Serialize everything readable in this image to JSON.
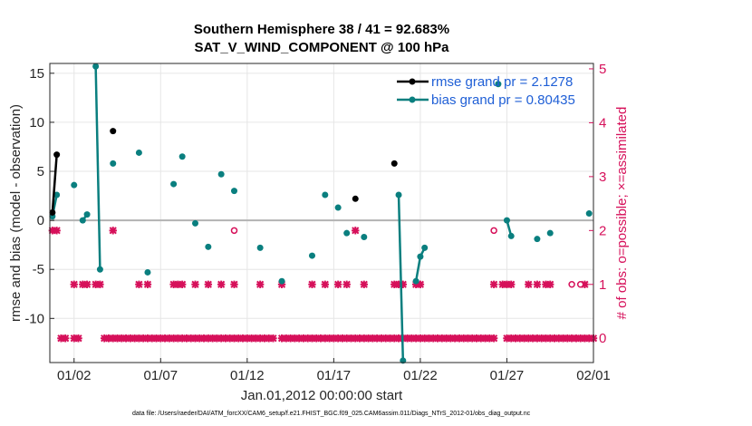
{
  "chart_data": {
    "type": "line",
    "title": "Southern Hemisphere 38 / 41 = 92.683%",
    "subtitle": "SAT_V_WIND_COMPONENT @ 100 hPa",
    "xlabel": "Jan.01,2012 00:00:00 start",
    "ylabel": "rmse and bias (model - observation)",
    "y2label": "# of obs: o=possible; ×=assimilated",
    "footnote": "data file: /Users/raeder/DAI/ATM_forcXX/CAM6_setup/f.e21.FHIST_BGC.f09_025.CAM6assim.011/Diags_NTrS_2012-01/obs_diag_output.nc",
    "xlim": [
      0.6,
      32.0
    ],
    "ylim": [
      -14.5,
      16.0
    ],
    "y2lim": [
      -0.45,
      5.1
    ],
    "xticks": [
      {
        "v": 2,
        "label": "01/02"
      },
      {
        "v": 7,
        "label": "01/07"
      },
      {
        "v": 12,
        "label": "01/12"
      },
      {
        "v": 17,
        "label": "01/17"
      },
      {
        "v": 22,
        "label": "01/22"
      },
      {
        "v": 27,
        "label": "01/27"
      },
      {
        "v": 32,
        "label": "02/01"
      }
    ],
    "yticks": [
      {
        "v": 15,
        "label": "15"
      },
      {
        "v": 10,
        "label": "10"
      },
      {
        "v": 5,
        "label": "5"
      },
      {
        "v": 0,
        "label": "0"
      },
      {
        "v": -5,
        "label": "-5"
      },
      {
        "v": -10,
        "label": "-10"
      }
    ],
    "y2ticks": [
      {
        "v": 5,
        "label": "5"
      },
      {
        "v": 4,
        "label": "4"
      },
      {
        "v": 3,
        "label": "3"
      },
      {
        "v": 2,
        "label": "2"
      },
      {
        "v": 1,
        "label": "1"
      },
      {
        "v": 0,
        "label": "0"
      }
    ],
    "colors": {
      "rmse": "#000000",
      "bias": "#0a7f7f",
      "obs": "#d6105a",
      "legend_text": "#1f5fd6",
      "zero_line": "#b3b3b3"
    },
    "legend": [
      {
        "name": "rmse",
        "label": "rmse grand pr = 2.1278"
      },
      {
        "name": "bias",
        "label": "bias grand pr = 0.80435"
      }
    ],
    "series": [
      {
        "name": "rmse",
        "values": [
          [
            0.75,
            0.8
          ],
          [
            1.0,
            6.7
          ],
          null,
          [
            4.25,
            9.1
          ],
          null,
          [
            18.25,
            2.2
          ],
          null,
          [
            20.5,
            5.8
          ]
        ]
      },
      {
        "name": "bias",
        "values": [
          [
            0.75,
            0.4
          ],
          [
            1.0,
            2.6
          ],
          null,
          [
            2.0,
            3.6
          ],
          null,
          [
            2.5,
            0.0
          ],
          [
            2.75,
            0.6
          ],
          null,
          [
            3.25,
            15.7
          ],
          [
            3.5,
            -5.0
          ],
          null,
          [
            4.25,
            5.8
          ],
          null,
          [
            5.75,
            6.9
          ],
          null,
          [
            6.25,
            -5.3
          ],
          null,
          [
            7.75,
            3.7
          ],
          null,
          [
            8.25,
            6.5
          ],
          null,
          [
            9.0,
            -0.3
          ],
          null,
          [
            9.75,
            -2.7
          ],
          null,
          [
            10.5,
            4.7
          ],
          null,
          [
            11.25,
            3.0
          ],
          null,
          [
            12.75,
            -2.8
          ],
          null,
          [
            14.0,
            -6.2
          ],
          null,
          [
            15.75,
            -3.6
          ],
          null,
          [
            16.5,
            2.6
          ],
          null,
          [
            17.25,
            1.3
          ],
          null,
          [
            17.75,
            -1.3
          ],
          null,
          [
            18.75,
            -1.7
          ],
          null,
          [
            20.75,
            2.6
          ],
          [
            21.0,
            -14.3
          ],
          null,
          [
            21.75,
            -6.2
          ],
          [
            22.0,
            -3.7
          ],
          [
            22.25,
            -2.8
          ],
          null,
          [
            26.5,
            13.9
          ],
          null,
          [
            27.0,
            0.0
          ],
          [
            27.25,
            -1.6
          ],
          null,
          [
            28.75,
            -1.9
          ],
          null,
          [
            29.5,
            -1.3
          ],
          null,
          [
            31.75,
            0.7
          ]
        ]
      }
    ],
    "obs_assimilated": [
      [
        0.75,
        2
      ],
      [
        1.0,
        2
      ],
      [
        1.25,
        0
      ],
      [
        1.5,
        0
      ],
      [
        2.0,
        1
      ],
      [
        2.0,
        0
      ],
      [
        2.25,
        0
      ],
      [
        2.5,
        1
      ],
      [
        2.75,
        1
      ],
      [
        3.25,
        1
      ],
      [
        3.5,
        1
      ],
      [
        3.75,
        0
      ],
      [
        4.0,
        0
      ],
      [
        4.25,
        2
      ],
      [
        4.25,
        0
      ],
      [
        4.5,
        0
      ],
      [
        4.75,
        0
      ],
      [
        5.0,
        0
      ],
      [
        5.25,
        0
      ],
      [
        5.5,
        0
      ],
      [
        5.75,
        1
      ],
      [
        5.75,
        0
      ],
      [
        6.0,
        0
      ],
      [
        6.25,
        1
      ],
      [
        6.25,
        0
      ],
      [
        6.5,
        0
      ],
      [
        6.75,
        0
      ],
      [
        7.0,
        0
      ],
      [
        7.25,
        0
      ],
      [
        7.5,
        0
      ],
      [
        7.75,
        1
      ],
      [
        7.75,
        0
      ],
      [
        8.0,
        1
      ],
      [
        8.0,
        0
      ],
      [
        8.25,
        1
      ],
      [
        8.25,
        0
      ],
      [
        8.5,
        0
      ],
      [
        8.75,
        0
      ],
      [
        9.0,
        1
      ],
      [
        9.0,
        0
      ],
      [
        9.25,
        0
      ],
      [
        9.5,
        0
      ],
      [
        9.75,
        1
      ],
      [
        9.75,
        0
      ],
      [
        10.0,
        0
      ],
      [
        10.25,
        0
      ],
      [
        10.5,
        1
      ],
      [
        10.5,
        0
      ],
      [
        10.75,
        0
      ],
      [
        11.0,
        0
      ],
      [
        11.25,
        1
      ],
      [
        11.25,
        0
      ],
      [
        11.5,
        0
      ],
      [
        11.75,
        0
      ],
      [
        12.0,
        0
      ],
      [
        12.25,
        0
      ],
      [
        12.5,
        0
      ],
      [
        12.75,
        1
      ],
      [
        12.75,
        0
      ],
      [
        13.0,
        0
      ],
      [
        13.25,
        0
      ],
      [
        13.5,
        0
      ],
      [
        14.0,
        1
      ],
      [
        14.0,
        0
      ],
      [
        14.25,
        0
      ],
      [
        14.5,
        0
      ],
      [
        14.75,
        0
      ],
      [
        15.0,
        0
      ],
      [
        15.25,
        0
      ],
      [
        15.5,
        0
      ],
      [
        15.75,
        1
      ],
      [
        15.75,
        0
      ],
      [
        16.0,
        0
      ],
      [
        16.25,
        0
      ],
      [
        16.5,
        1
      ],
      [
        16.5,
        0
      ],
      [
        16.75,
        0
      ],
      [
        17.0,
        0
      ],
      [
        17.25,
        1
      ],
      [
        17.25,
        0
      ],
      [
        17.5,
        0
      ],
      [
        17.75,
        1
      ],
      [
        17.75,
        0
      ],
      [
        18.0,
        0
      ],
      [
        18.25,
        2
      ],
      [
        18.25,
        0
      ],
      [
        18.5,
        0
      ],
      [
        18.75,
        1
      ],
      [
        18.75,
        0
      ],
      [
        19.0,
        0
      ],
      [
        19.25,
        0
      ],
      [
        19.5,
        0
      ],
      [
        19.75,
        0
      ],
      [
        20.0,
        0
      ],
      [
        20.25,
        0
      ],
      [
        20.5,
        1
      ],
      [
        20.5,
        0
      ],
      [
        20.75,
        1
      ],
      [
        20.75,
        0
      ],
      [
        21.0,
        1
      ],
      [
        21.0,
        0
      ],
      [
        21.25,
        0
      ],
      [
        21.5,
        0
      ],
      [
        21.75,
        1
      ],
      [
        21.75,
        0
      ],
      [
        22.0,
        1
      ],
      [
        22.0,
        0
      ],
      [
        22.25,
        0
      ],
      [
        22.5,
        0
      ],
      [
        22.75,
        0
      ],
      [
        23.0,
        0
      ],
      [
        23.25,
        0
      ],
      [
        23.5,
        0
      ],
      [
        23.75,
        0
      ],
      [
        24.0,
        0
      ],
      [
        24.25,
        0
      ],
      [
        24.5,
        0
      ],
      [
        24.75,
        0
      ],
      [
        25.0,
        0
      ],
      [
        25.25,
        0
      ],
      [
        25.5,
        0
      ],
      [
        25.75,
        0
      ],
      [
        26.0,
        0
      ],
      [
        26.25,
        1
      ],
      [
        26.25,
        0
      ],
      [
        26.75,
        1
      ],
      [
        27.0,
        1
      ],
      [
        27.0,
        0
      ],
      [
        27.25,
        1
      ],
      [
        27.25,
        0
      ],
      [
        27.5,
        0
      ],
      [
        27.75,
        0
      ],
      [
        28.0,
        0
      ],
      [
        28.25,
        1
      ],
      [
        28.25,
        0
      ],
      [
        28.5,
        0
      ],
      [
        28.75,
        1
      ],
      [
        28.75,
        0
      ],
      [
        29.0,
        0
      ],
      [
        29.25,
        1
      ],
      [
        29.25,
        0
      ],
      [
        29.5,
        1
      ],
      [
        29.5,
        0
      ],
      [
        29.75,
        0
      ],
      [
        30.0,
        0
      ],
      [
        30.25,
        0
      ],
      [
        30.5,
        0
      ],
      [
        30.75,
        0
      ],
      [
        31.0,
        0
      ],
      [
        31.25,
        0
      ],
      [
        31.5,
        1
      ],
      [
        31.5,
        0
      ],
      [
        31.75,
        0
      ],
      [
        32.0,
        0
      ]
    ],
    "obs_possible": [
      [
        11.25,
        2
      ],
      [
        26.25,
        2
      ],
      [
        30.75,
        1
      ],
      [
        31.25,
        1
      ]
    ]
  }
}
